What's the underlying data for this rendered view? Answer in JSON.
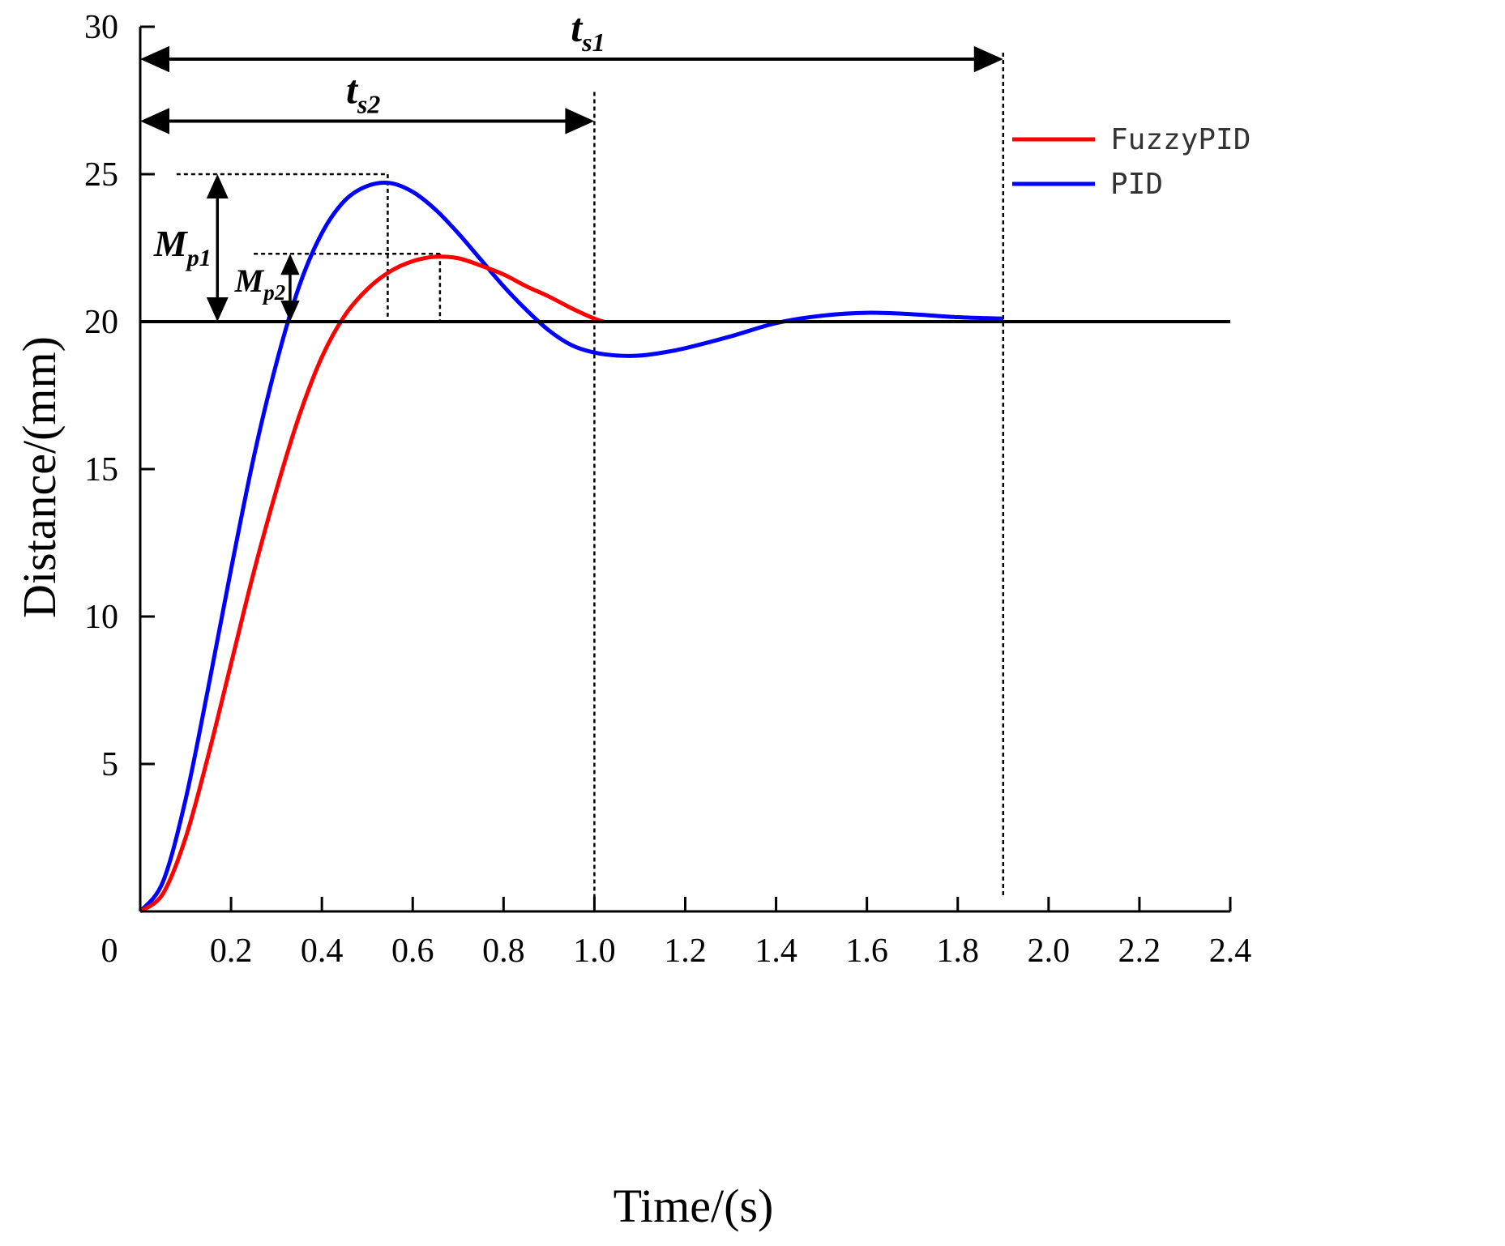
{
  "chart_data": {
    "type": "line",
    "title": "",
    "xlabel": "Time/(s)",
    "ylabel": "Distance/(mm)",
    "xlim": [
      0,
      2.4
    ],
    "ylim": [
      0,
      30
    ],
    "x_ticks": [
      0.2,
      0.4,
      0.6,
      0.8,
      1.0,
      1.2,
      1.4,
      1.6,
      1.8,
      2.0,
      2.2,
      2.4
    ],
    "x_tick_labels": [
      "0.2",
      "0.4",
      "0.6",
      "0.8",
      "1.0",
      "1.2",
      "1.4",
      "1.6",
      "1.8",
      "2.0",
      "2.2",
      "2.4"
    ],
    "y_ticks": [
      5,
      10,
      15,
      20,
      25,
      30
    ],
    "y_tick_labels": [
      "5",
      "10",
      "15",
      "20",
      "25",
      "30"
    ],
    "origin_label": "0",
    "grid": false,
    "legend_position": "top-right",
    "reference_line": {
      "y": 20,
      "color": "#000000"
    },
    "series": [
      {
        "name": "FuzzyPID",
        "color": "#ff0000",
        "x": [
          0,
          0.05,
          0.1,
          0.15,
          0.2,
          0.25,
          0.3,
          0.35,
          0.4,
          0.45,
          0.5,
          0.55,
          0.6,
          0.65,
          0.7,
          0.75,
          0.8,
          0.85,
          0.9,
          0.95,
          1.0,
          1.02
        ],
        "y": [
          0,
          0.6,
          2.5,
          5.3,
          8.4,
          11.5,
          14.3,
          16.8,
          18.8,
          20.2,
          21.1,
          21.7,
          22.05,
          22.2,
          22.15,
          21.9,
          21.6,
          21.2,
          20.85,
          20.45,
          20.1,
          20.0
        ]
      },
      {
        "name": "PID",
        "color": "#0000ff",
        "x": [
          0,
          0.05,
          0.1,
          0.15,
          0.2,
          0.25,
          0.3,
          0.35,
          0.4,
          0.45,
          0.5,
          0.55,
          0.6,
          0.65,
          0.7,
          0.75,
          0.8,
          0.85,
          0.9,
          0.95,
          1.0,
          1.05,
          1.1,
          1.15,
          1.2,
          1.3,
          1.4,
          1.5,
          1.6,
          1.7,
          1.8,
          1.9
        ],
        "y": [
          0,
          1.0,
          3.8,
          7.6,
          11.6,
          15.4,
          18.6,
          21.2,
          23.0,
          24.1,
          24.6,
          24.7,
          24.4,
          23.8,
          23.0,
          22.1,
          21.2,
          20.4,
          19.7,
          19.2,
          18.95,
          18.85,
          18.85,
          18.95,
          19.1,
          19.5,
          19.95,
          20.2,
          20.3,
          20.25,
          20.15,
          20.1
        ]
      }
    ],
    "annotations": {
      "ts1": {
        "base": "t",
        "sub": "s1",
        "x_from": 0,
        "x_to": 1.9,
        "y": 28.9
      },
      "ts2": {
        "base": "t",
        "sub": "s2",
        "x_from": 0,
        "x_to": 1.0,
        "y": 26.8
      },
      "mp1": {
        "base": "M",
        "sub": "p1",
        "x": 0.17,
        "y_from": 20,
        "y_to": 25
      },
      "mp2": {
        "base": "M",
        "sub": "p2",
        "x": 0.33,
        "y_from": 20,
        "y_to": 22.3
      },
      "settle_lines": [
        1.0,
        1.9
      ],
      "peak_guides": [
        {
          "x_start": 0.08,
          "x_peak": 0.545,
          "y": 25.0
        },
        {
          "x_start": 0.25,
          "x_peak": 0.66,
          "y": 22.3
        }
      ]
    }
  }
}
